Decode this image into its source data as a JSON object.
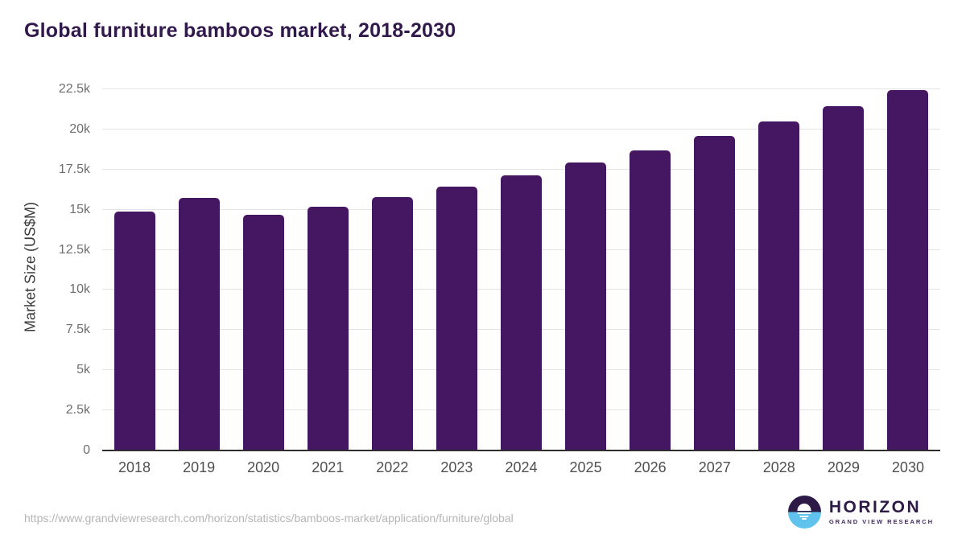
{
  "title": "Global furniture bamboos market, 2018-2030",
  "chart_data": {
    "type": "bar",
    "title": "Global furniture bamboos market, 2018-2030",
    "categories": [
      "2018",
      "2019",
      "2020",
      "2021",
      "2022",
      "2023",
      "2024",
      "2025",
      "2026",
      "2027",
      "2028",
      "2029",
      "2030"
    ],
    "values": [
      14900,
      15750,
      14700,
      15200,
      15800,
      16450,
      17150,
      17950,
      18700,
      19600,
      20500,
      21450,
      22450
    ],
    "xlabel": "",
    "ylabel": "Market Size (US$M)",
    "ylim": [
      0,
      22500
    ],
    "yticks": [
      0,
      2500,
      5000,
      7500,
      10000,
      12500,
      15000,
      17500,
      20000,
      22500
    ],
    "ytick_labels": [
      "0",
      "2.5k",
      "5k",
      "7.5k",
      "10k",
      "12.5k",
      "15k",
      "17.5k",
      "20k",
      "22.5k"
    ],
    "bar_color": "#451661",
    "grid": "horizontal-only",
    "legend": "none"
  },
  "footer": {
    "source_url": "https://www.grandviewresearch.com/horizon/statistics/bamboos-market/application/furniture/global",
    "logo_title": "HORIZON",
    "logo_subtitle": "GRAND VIEW RESEARCH",
    "logo_icon": "horizon-sun-icon",
    "logo_colors": {
      "dark": "#2e1a47",
      "blue": "#5fc3ee"
    }
  }
}
